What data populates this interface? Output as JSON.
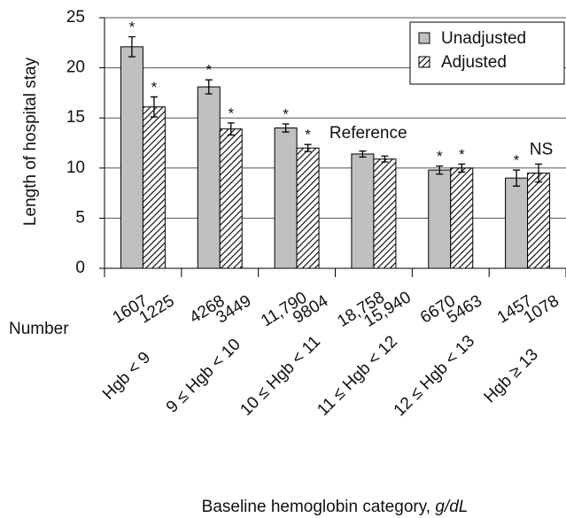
{
  "chart_data": {
    "type": "bar",
    "y_label": "Length of hospital stay",
    "x_label": "Baseline hemoglobin category, ",
    "x_label_unit": "g/dL",
    "number_label": "Number",
    "categories": [
      "Hgb < 9",
      "9 ≤ Hgb < 10",
      "10 ≤ Hgb < 11",
      "11 ≤ Hgb < 12",
      "12 ≤ Hgb < 13",
      "Hgb ≥ 13"
    ],
    "category_annotations": [
      null,
      null,
      null,
      "Reference",
      null,
      null
    ],
    "series": [
      {
        "name": "Unadjusted",
        "color": "#c0c0c0",
        "hatch": false,
        "values": [
          22.1,
          18.1,
          14.0,
          11.4,
          9.8,
          9.0
        ],
        "errors": [
          1.0,
          0.7,
          0.4,
          0.3,
          0.4,
          0.8
        ],
        "annotations": [
          "*",
          "*",
          "*",
          null,
          "*",
          "*"
        ],
        "counts": [
          "1607",
          "4268",
          "11,790",
          "18,758",
          "6670",
          "1457"
        ]
      },
      {
        "name": "Adjusted",
        "color": "#000000",
        "hatch": true,
        "values": [
          16.1,
          13.9,
          12.0,
          10.9,
          10.0,
          9.5
        ],
        "errors": [
          1.0,
          0.6,
          0.35,
          0.3,
          0.4,
          0.9
        ],
        "annotations": [
          "*",
          "*",
          "*",
          null,
          "*",
          "NS"
        ],
        "counts": [
          "1225",
          "3449",
          "9804",
          "15,940",
          "5463",
          "1078"
        ]
      }
    ],
    "ylim": [
      0,
      25
    ],
    "yticks": [
      0,
      5,
      10,
      15,
      20,
      25
    ],
    "grid": true,
    "legend": "upper right"
  }
}
